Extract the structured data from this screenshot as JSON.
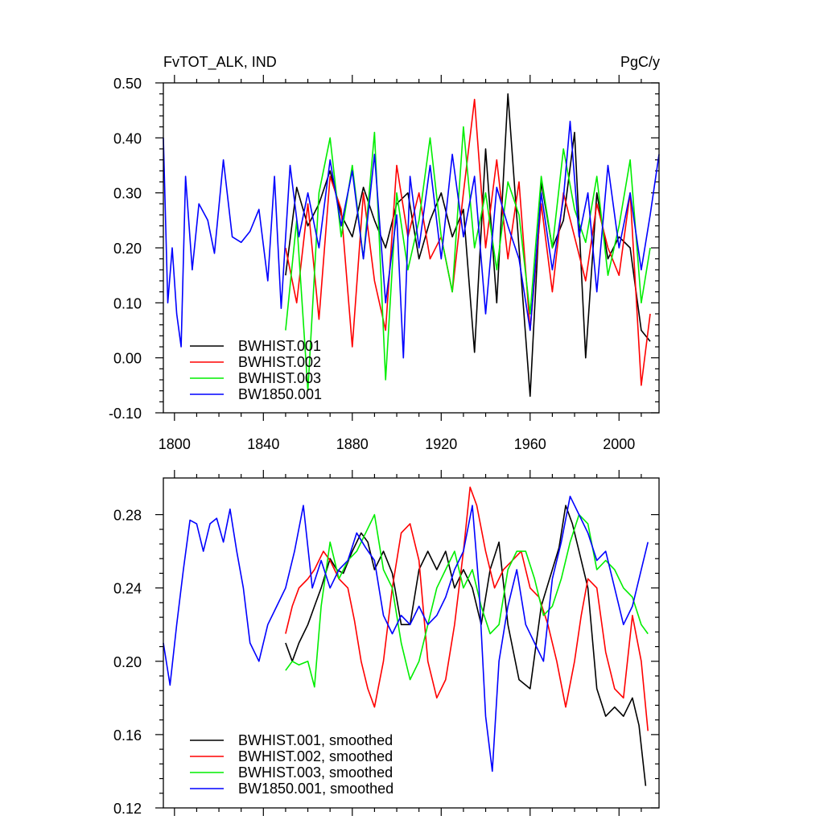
{
  "chart_data": [
    {
      "type": "line",
      "title": "FvTOT_ALK, IND",
      "units": "PgC/y",
      "xlim": [
        1795,
        2018
      ],
      "ylim": [
        -0.1,
        0.5
      ],
      "x_ticks": [
        1800,
        1840,
        1880,
        1920,
        1960,
        2000
      ],
      "x_tick_labels": [
        "1800",
        "1840",
        "1880",
        "1920",
        "1960",
        "2000"
      ],
      "y_ticks": [
        -0.1,
        0.0,
        0.1,
        0.2,
        0.3,
        0.4,
        0.5
      ],
      "y_tick_labels": [
        "-0.10",
        "0.00",
        "0.10",
        "0.20",
        "0.30",
        "0.40",
        "0.50"
      ],
      "grid": false,
      "legend_position": "bottom-left",
      "series": [
        {
          "name": "BWHIST.001",
          "color": "#000000",
          "x": [
            1850,
            1855,
            1860,
            1865,
            1870,
            1875,
            1880,
            1885,
            1890,
            1895,
            1900,
            1905,
            1910,
            1915,
            1920,
            1925,
            1930,
            1935,
            1940,
            1945,
            1950,
            1955,
            1960,
            1965,
            1970,
            1975,
            1980,
            1985,
            1990,
            1995,
            2000,
            2005,
            2010,
            2014
          ],
          "y": [
            0.15,
            0.31,
            0.24,
            0.28,
            0.34,
            0.26,
            0.22,
            0.31,
            0.25,
            0.2,
            0.28,
            0.3,
            0.18,
            0.25,
            0.3,
            0.22,
            0.27,
            0.01,
            0.38,
            0.1,
            0.48,
            0.2,
            -0.07,
            0.32,
            0.2,
            0.25,
            0.41,
            0.0,
            0.3,
            0.18,
            0.22,
            0.2,
            0.05,
            0.03
          ]
        },
        {
          "name": "BWHIST.002",
          "color": "#ff0000",
          "x": [
            1850,
            1855,
            1860,
            1865,
            1870,
            1875,
            1880,
            1885,
            1890,
            1895,
            1900,
            1905,
            1910,
            1915,
            1920,
            1925,
            1930,
            1935,
            1940,
            1945,
            1950,
            1955,
            1960,
            1965,
            1970,
            1975,
            1980,
            1985,
            1990,
            1995,
            2000,
            2005,
            2010,
            2014
          ],
          "y": [
            0.2,
            0.1,
            0.28,
            0.07,
            0.33,
            0.27,
            0.02,
            0.3,
            0.14,
            0.05,
            0.35,
            0.22,
            0.3,
            0.18,
            0.22,
            0.12,
            0.3,
            0.47,
            0.2,
            0.36,
            0.18,
            0.32,
            0.05,
            0.28,
            0.12,
            0.3,
            0.22,
            0.14,
            0.28,
            0.2,
            0.15,
            0.3,
            -0.05,
            0.08
          ]
        },
        {
          "name": "BWHIST.003",
          "color": "#00ee00",
          "x": [
            1850,
            1855,
            1860,
            1865,
            1870,
            1875,
            1880,
            1885,
            1890,
            1895,
            1900,
            1905,
            1910,
            1915,
            1920,
            1925,
            1930,
            1935,
            1940,
            1945,
            1950,
            1955,
            1960,
            1965,
            1970,
            1975,
            1980,
            1985,
            1990,
            1995,
            2000,
            2005,
            2010,
            2014
          ],
          "y": [
            0.05,
            0.25,
            -0.06,
            0.3,
            0.4,
            0.22,
            0.35,
            0.18,
            0.41,
            -0.04,
            0.3,
            0.16,
            0.25,
            0.4,
            0.22,
            0.12,
            0.42,
            0.2,
            0.3,
            0.16,
            0.32,
            0.26,
            0.08,
            0.33,
            0.2,
            0.38,
            0.27,
            0.21,
            0.33,
            0.15,
            0.24,
            0.36,
            0.1,
            0.2
          ]
        },
        {
          "name": "BW1850.001",
          "color": "#0000ff",
          "x": [
            1795,
            1797,
            1799,
            1801,
            1803,
            1805,
            1808,
            1811,
            1815,
            1818,
            1822,
            1826,
            1830,
            1834,
            1838,
            1842,
            1845,
            1848,
            1852,
            1856,
            1860,
            1865,
            1870,
            1875,
            1880,
            1885,
            1890,
            1895,
            1900,
            1903,
            1906,
            1910,
            1915,
            1920,
            1925,
            1930,
            1935,
            1940,
            1945,
            1950,
            1955,
            1960,
            1965,
            1970,
            1975,
            1978,
            1982,
            1986,
            1990,
            1995,
            2000,
            2005,
            2010,
            2014,
            2018
          ],
          "y": [
            0.4,
            0.1,
            0.2,
            0.08,
            0.02,
            0.33,
            0.16,
            0.28,
            0.25,
            0.19,
            0.36,
            0.22,
            0.21,
            0.23,
            0.27,
            0.14,
            0.33,
            0.09,
            0.35,
            0.22,
            0.3,
            0.2,
            0.36,
            0.24,
            0.34,
            0.18,
            0.37,
            0.1,
            0.26,
            0.0,
            0.33,
            0.2,
            0.35,
            0.18,
            0.37,
            0.22,
            0.33,
            0.08,
            0.31,
            0.24,
            0.18,
            0.05,
            0.3,
            0.16,
            0.29,
            0.43,
            0.22,
            0.3,
            0.12,
            0.35,
            0.2,
            0.3,
            0.16,
            0.26,
            0.37
          ]
        }
      ]
    },
    {
      "type": "line",
      "xlim": [
        1795,
        2018
      ],
      "ylim": [
        0.12,
        0.3
      ],
      "x_ticks": [
        1800,
        1840,
        1880,
        1920,
        1960,
        2000
      ],
      "y_ticks": [
        0.12,
        0.16,
        0.2,
        0.24,
        0.28
      ],
      "y_tick_labels": [
        "0.12",
        "0.16",
        "0.20",
        "0.24",
        "0.28"
      ],
      "grid": false,
      "legend_position": "bottom-left",
      "series": [
        {
          "name": "BWHIST.001, smoothed",
          "color": "#000000",
          "x": [
            1850,
            1853,
            1856,
            1860,
            1863,
            1866,
            1870,
            1873,
            1876,
            1880,
            1884,
            1887,
            1890,
            1894,
            1898,
            1902,
            1906,
            1910,
            1914,
            1918,
            1922,
            1926,
            1930,
            1934,
            1938,
            1942,
            1946,
            1950,
            1955,
            1960,
            1965,
            1970,
            1973,
            1976,
            1979,
            1982,
            1986,
            1990,
            1994,
            1998,
            2002,
            2006,
            2009,
            2012
          ],
          "y": [
            0.21,
            0.2,
            0.21,
            0.22,
            0.23,
            0.24,
            0.256,
            0.25,
            0.248,
            0.26,
            0.27,
            0.265,
            0.25,
            0.26,
            0.248,
            0.22,
            0.22,
            0.25,
            0.26,
            0.25,
            0.26,
            0.24,
            0.25,
            0.24,
            0.22,
            0.25,
            0.265,
            0.22,
            0.19,
            0.185,
            0.23,
            0.25,
            0.262,
            0.285,
            0.275,
            0.26,
            0.24,
            0.185,
            0.17,
            0.175,
            0.17,
            0.18,
            0.165,
            0.132
          ]
        },
        {
          "name": "BWHIST.002, smoothed",
          "color": "#ff0000",
          "x": [
            1850,
            1853,
            1856,
            1860,
            1863,
            1867,
            1870,
            1874,
            1878,
            1881,
            1884,
            1887,
            1890,
            1894,
            1898,
            1902,
            1906,
            1910,
            1914,
            1918,
            1922,
            1926,
            1930,
            1933,
            1936,
            1940,
            1944,
            1948,
            1952,
            1956,
            1960,
            1964,
            1968,
            1972,
            1976,
            1980,
            1983,
            1986,
            1990,
            1994,
            1998,
            2002,
            2006,
            2010,
            2013
          ],
          "y": [
            0.215,
            0.23,
            0.24,
            0.245,
            0.25,
            0.26,
            0.255,
            0.245,
            0.24,
            0.222,
            0.2,
            0.185,
            0.175,
            0.2,
            0.24,
            0.27,
            0.275,
            0.255,
            0.2,
            0.18,
            0.19,
            0.22,
            0.26,
            0.295,
            0.285,
            0.26,
            0.24,
            0.25,
            0.255,
            0.26,
            0.24,
            0.235,
            0.22,
            0.2,
            0.175,
            0.2,
            0.225,
            0.245,
            0.24,
            0.205,
            0.185,
            0.18,
            0.225,
            0.2,
            0.162
          ]
        },
        {
          "name": "BWHIST.003, smoothed",
          "color": "#00ee00",
          "x": [
            1850,
            1853,
            1856,
            1860,
            1863,
            1866,
            1870,
            1874,
            1878,
            1882,
            1886,
            1890,
            1894,
            1898,
            1902,
            1906,
            1910,
            1914,
            1918,
            1922,
            1926,
            1930,
            1934,
            1938,
            1942,
            1946,
            1950,
            1954,
            1958,
            1962,
            1966,
            1970,
            1974,
            1978,
            1982,
            1986,
            1990,
            1994,
            1998,
            2002,
            2006,
            2010,
            2013
          ],
          "y": [
            0.195,
            0.2,
            0.198,
            0.2,
            0.186,
            0.23,
            0.265,
            0.245,
            0.255,
            0.26,
            0.27,
            0.28,
            0.25,
            0.24,
            0.21,
            0.19,
            0.2,
            0.22,
            0.24,
            0.25,
            0.26,
            0.24,
            0.25,
            0.23,
            0.215,
            0.22,
            0.25,
            0.26,
            0.26,
            0.245,
            0.225,
            0.23,
            0.245,
            0.265,
            0.28,
            0.275,
            0.25,
            0.255,
            0.25,
            0.24,
            0.235,
            0.22,
            0.215
          ]
        },
        {
          "name": "BW1850.001, smoothed",
          "color": "#0000ff",
          "x": [
            1795,
            1798,
            1801,
            1804,
            1807,
            1810,
            1813,
            1816,
            1819,
            1822,
            1825,
            1828,
            1831,
            1834,
            1838,
            1842,
            1846,
            1850,
            1854,
            1858,
            1862,
            1866,
            1870,
            1874,
            1878,
            1882,
            1886,
            1890,
            1894,
            1898,
            1902,
            1906,
            1910,
            1914,
            1918,
            1922,
            1926,
            1930,
            1934,
            1937,
            1940,
            1943,
            1946,
            1950,
            1954,
            1958,
            1962,
            1966,
            1970,
            1974,
            1978,
            1982,
            1986,
            1990,
            1994,
            1998,
            2002,
            2006,
            2010,
            2013
          ],
          "y": [
            0.21,
            0.187,
            0.22,
            0.25,
            0.277,
            0.275,
            0.26,
            0.275,
            0.278,
            0.265,
            0.283,
            0.26,
            0.24,
            0.21,
            0.2,
            0.22,
            0.23,
            0.24,
            0.26,
            0.285,
            0.24,
            0.255,
            0.24,
            0.25,
            0.255,
            0.27,
            0.262,
            0.255,
            0.225,
            0.215,
            0.225,
            0.22,
            0.23,
            0.22,
            0.225,
            0.235,
            0.25,
            0.26,
            0.285,
            0.24,
            0.17,
            0.14,
            0.2,
            0.23,
            0.25,
            0.22,
            0.21,
            0.2,
            0.245,
            0.265,
            0.29,
            0.28,
            0.27,
            0.255,
            0.26,
            0.24,
            0.22,
            0.23,
            0.25,
            0.265
          ]
        }
      ]
    }
  ]
}
